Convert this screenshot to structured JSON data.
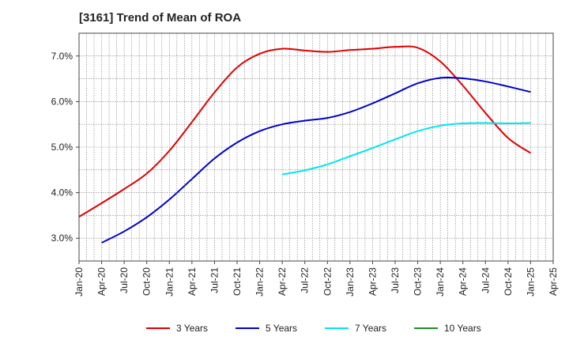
{
  "chart_data": {
    "type": "line",
    "title": "[3161]  Trend of Mean of ROA",
    "xlabel": "",
    "ylabel": "",
    "x_ticks": [
      "Jan-20",
      "Apr-20",
      "Jul-20",
      "Oct-20",
      "Jan-21",
      "Apr-21",
      "Jul-21",
      "Oct-21",
      "Jan-22",
      "Apr-22",
      "Jul-22",
      "Oct-22",
      "Jan-23",
      "Apr-23",
      "Jul-23",
      "Oct-23",
      "Jan-24",
      "Apr-24",
      "Jul-24",
      "Oct-24",
      "Jan-25",
      "Apr-25"
    ],
    "y_ticks": [
      "3.0%",
      "4.0%",
      "5.0%",
      "6.0%",
      "7.0%"
    ],
    "y_tick_values": [
      3,
      4,
      5,
      6,
      7
    ],
    "ylim": [
      2.5,
      7.5
    ],
    "x_range": [
      "Jan-20",
      "Apr-25"
    ],
    "grid": "dotted, vertical monthly and horizontal",
    "legend_position": "bottom",
    "series": [
      {
        "name": "3 Years",
        "color": "#e00000",
        "x": [
          "Jan-20",
          "Apr-20",
          "Jul-20",
          "Oct-20",
          "Jan-21",
          "Apr-21",
          "Jul-21",
          "Oct-21",
          "Jan-22",
          "Apr-22",
          "Jul-22",
          "Oct-22",
          "Jan-23",
          "Apr-23",
          "Jul-23",
          "Oct-23",
          "Jan-24",
          "Apr-24",
          "Jul-24",
          "Oct-24",
          "Jan-25"
        ],
        "values": [
          3.47,
          3.77,
          4.08,
          4.42,
          4.92,
          5.55,
          6.2,
          6.75,
          7.05,
          7.16,
          7.12,
          7.09,
          7.13,
          7.16,
          7.2,
          7.18,
          6.88,
          6.35,
          5.75,
          5.2,
          4.87
        ]
      },
      {
        "name": "5 Years",
        "color": "#0000cc",
        "x": [
          "Apr-20",
          "Jul-20",
          "Oct-20",
          "Jan-21",
          "Apr-21",
          "Jul-21",
          "Oct-21",
          "Jan-22",
          "Apr-22",
          "Jul-22",
          "Oct-22",
          "Jan-23",
          "Apr-23",
          "Jul-23",
          "Oct-23",
          "Jan-24",
          "Apr-24",
          "Jul-24",
          "Oct-24",
          "Jan-25"
        ],
        "values": [
          2.9,
          3.15,
          3.46,
          3.85,
          4.3,
          4.75,
          5.1,
          5.35,
          5.5,
          5.58,
          5.64,
          5.77,
          5.96,
          6.18,
          6.4,
          6.52,
          6.51,
          6.44,
          6.33,
          6.21
        ]
      },
      {
        "name": "7 Years",
        "color": "#00e5ee",
        "x": [
          "Apr-22",
          "Jul-22",
          "Oct-22",
          "Jan-23",
          "Apr-23",
          "Jul-23",
          "Oct-23",
          "Jan-24",
          "Apr-24",
          "Jul-24",
          "Oct-24",
          "Jan-25"
        ],
        "values": [
          4.4,
          4.49,
          4.62,
          4.8,
          4.98,
          5.17,
          5.35,
          5.47,
          5.52,
          5.53,
          5.52,
          5.53
        ]
      },
      {
        "name": "10 Years",
        "color": "#228b22",
        "x": [],
        "values": []
      }
    ]
  }
}
